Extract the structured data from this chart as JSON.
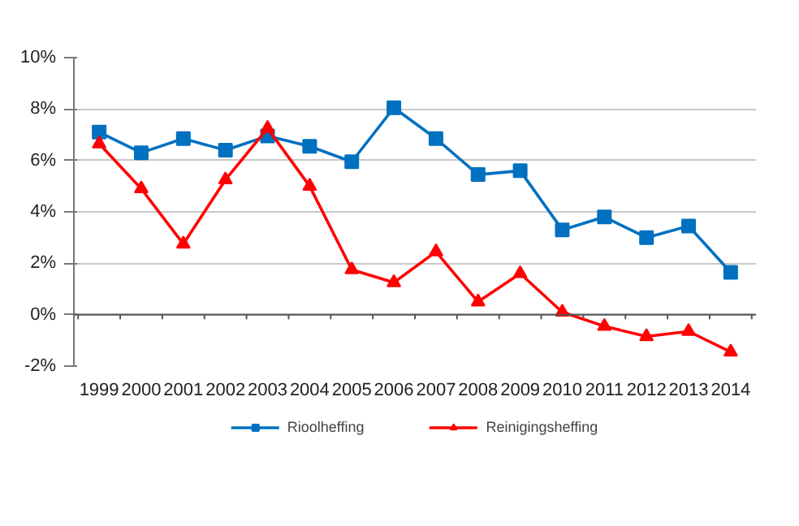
{
  "chart_data": {
    "type": "line",
    "categories": [
      "1999",
      "2000",
      "2001",
      "2002",
      "2003",
      "2004",
      "2005",
      "2006",
      "2007",
      "2008",
      "2009",
      "2010",
      "2011",
      "2012",
      "2013",
      "2014"
    ],
    "series": [
      {
        "name": "Rioolheffing",
        "color": "#0070c0",
        "marker": "square",
        "values": [
          7.1,
          6.3,
          6.85,
          6.4,
          6.95,
          6.55,
          5.95,
          8.05,
          6.85,
          5.45,
          5.6,
          3.3,
          3.8,
          3.0,
          3.45,
          1.65
        ]
      },
      {
        "name": "Reinigingsheffing",
        "color": "#ff0000",
        "marker": "triangle",
        "values": [
          6.65,
          4.9,
          2.75,
          5.25,
          7.25,
          5.0,
          1.75,
          1.25,
          2.45,
          0.5,
          1.6,
          0.1,
          -0.45,
          -0.85,
          -0.65,
          -1.45
        ]
      }
    ],
    "ylim": [
      -2,
      10
    ],
    "yticks": [
      {
        "value": -2,
        "label": "-2%"
      },
      {
        "value": 0,
        "label": "0%"
      },
      {
        "value": 2,
        "label": "2%"
      },
      {
        "value": 4,
        "label": "4%"
      },
      {
        "value": 6,
        "label": "6%"
      },
      {
        "value": 8,
        "label": "8%"
      },
      {
        "value": 10,
        "label": "10%"
      }
    ],
    "grid": "y",
    "legend": "bottom"
  }
}
